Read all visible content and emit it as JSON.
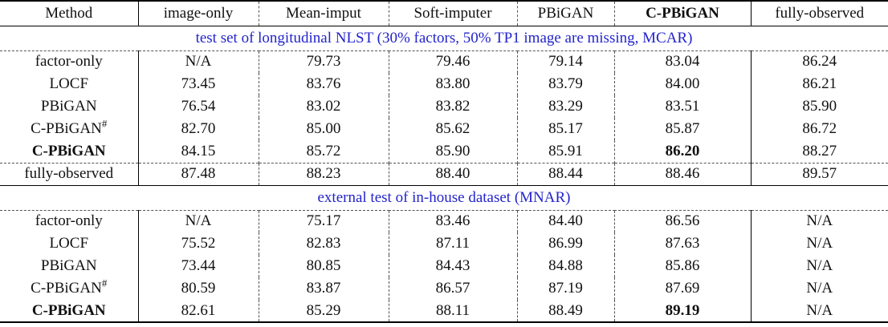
{
  "table": {
    "header": {
      "columns": [
        {
          "label": "Method"
        },
        {
          "label": "image-only"
        },
        {
          "label": "Mean-imput"
        },
        {
          "label": "Soft-imputer"
        },
        {
          "label": "PBiGAN"
        },
        {
          "label": "C-PBiGAN",
          "bold": true
        },
        {
          "label": "fully-observed"
        }
      ]
    },
    "sections": [
      {
        "caption": "test set of longitudinal NLST (30% factors, 50% TP1 image are missing, MCAR)",
        "rows": [
          {
            "method": "factor-only",
            "values": [
              "N/A",
              "79.73",
              "79.46",
              "79.14",
              "83.04",
              "86.24"
            ]
          },
          {
            "method": "LOCF",
            "values": [
              "73.45",
              "83.76",
              "83.80",
              "83.79",
              "84.00",
              "86.21"
            ]
          },
          {
            "method": "PBiGAN",
            "values": [
              "76.54",
              "83.02",
              "83.82",
              "83.29",
              "83.51",
              "85.90"
            ]
          },
          {
            "method": "C-PBiGAN",
            "superscript": "#",
            "values": [
              "82.70",
              "85.00",
              "85.62",
              "85.17",
              "85.87",
              "86.72"
            ]
          },
          {
            "method": "C-PBiGAN",
            "bold_method": true,
            "bold_value_index": 4,
            "values": [
              "84.15",
              "85.72",
              "85.90",
              "85.91",
              "86.20",
              "88.27"
            ]
          },
          {
            "method": "fully-observed",
            "separator_above": "dashed",
            "values": [
              "87.48",
              "88.23",
              "88.40",
              "88.44",
              "88.46",
              "89.57"
            ]
          }
        ]
      },
      {
        "caption": "external test of in-house dataset (MNAR)",
        "rows": [
          {
            "method": "factor-only",
            "values": [
              "N/A",
              "75.17",
              "83.46",
              "84.40",
              "86.56",
              "N/A"
            ]
          },
          {
            "method": "LOCF",
            "values": [
              "75.52",
              "82.83",
              "87.11",
              "86.99",
              "87.63",
              "N/A"
            ]
          },
          {
            "method": "PBiGAN",
            "values": [
              "73.44",
              "80.85",
              "84.43",
              "84.88",
              "85.86",
              "N/A"
            ]
          },
          {
            "method": "C-PBiGAN",
            "superscript": "#",
            "values": [
              "80.59",
              "83.87",
              "86.57",
              "87.19",
              "87.69",
              "N/A"
            ]
          },
          {
            "method": "C-PBiGAN",
            "bold_method": true,
            "bold_value_index": 4,
            "values": [
              "82.61",
              "85.29",
              "88.11",
              "88.49",
              "89.19",
              "N/A"
            ]
          }
        ]
      }
    ],
    "colors": {
      "caption_blue": "#2323cc",
      "text": "#111111",
      "rule": "#000000",
      "background": "#ffffff"
    }
  }
}
